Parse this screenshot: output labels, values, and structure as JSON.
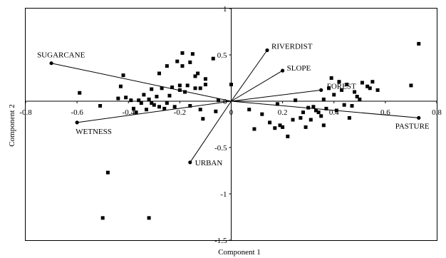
{
  "chart_data": {
    "type": "scatter",
    "title": "",
    "xlabel": "Component 1",
    "ylabel": "Component 2",
    "xlim": [
      -0.8,
      0.8
    ],
    "ylim": [
      -1.5,
      1
    ],
    "x_ticks": [
      -0.8,
      -0.6,
      -0.4,
      -0.2,
      0,
      0.2,
      0.4,
      0.6,
      0.8
    ],
    "x_tick_labels": [
      "-0.8",
      "-0.6",
      "-0.4",
      "-0.2",
      "0",
      "0.2",
      "0.4",
      "0.6",
      "0.8"
    ],
    "y_ticks": [
      1,
      0.5,
      0,
      -0.5,
      -1,
      -1.5
    ],
    "y_tick_labels": [
      "1",
      "0.5",
      "0",
      "-0.5",
      "-1",
      "-1.5"
    ],
    "grid": false,
    "loadings": [
      {
        "name": "SUGARCANE",
        "x": -0.7,
        "y": 0.41
      },
      {
        "name": "WETNESS",
        "x": -0.6,
        "y": -0.23
      },
      {
        "name": "URBAN",
        "x": -0.16,
        "y": -0.66
      },
      {
        "name": "RIVERDIST",
        "x": 0.14,
        "y": 0.55
      },
      {
        "name": "SLOPE",
        "x": 0.2,
        "y": 0.33
      },
      {
        "name": "FOREST",
        "x": 0.35,
        "y": 0.12
      },
      {
        "name": "PASTURE",
        "x": 0.73,
        "y": -0.18
      }
    ],
    "scores": [
      [
        -0.59,
        0.09
      ],
      [
        -0.51,
        -0.05
      ],
      [
        -0.44,
        0.03
      ],
      [
        -0.43,
        0.16
      ],
      [
        -0.42,
        0.28
      ],
      [
        -0.41,
        0.04
      ],
      [
        -0.39,
        0.01
      ],
      [
        -0.38,
        -0.08
      ],
      [
        -0.37,
        -0.12
      ],
      [
        -0.36,
        0.01
      ],
      [
        -0.35,
        -0.02
      ],
      [
        -0.34,
        0.07
      ],
      [
        -0.33,
        -0.09
      ],
      [
        -0.32,
        0.02
      ],
      [
        -0.31,
        -0.02
      ],
      [
        -0.31,
        0.13
      ],
      [
        -0.3,
        -0.04
      ],
      [
        -0.29,
        0.05
      ],
      [
        -0.28,
        0.3
      ],
      [
        -0.28,
        -0.06
      ],
      [
        -0.27,
        0.14
      ],
      [
        -0.26,
        -0.08
      ],
      [
        -0.25,
        0.38
      ],
      [
        -0.25,
        -0.02
      ],
      [
        -0.24,
        0.06
      ],
      [
        -0.23,
        0.15
      ],
      [
        -0.22,
        -0.06
      ],
      [
        -0.21,
        0.43
      ],
      [
        -0.2,
        0.12
      ],
      [
        -0.2,
        0.17
      ],
      [
        -0.19,
        0.52
      ],
      [
        -0.19,
        0.38
      ],
      [
        -0.18,
        0.1
      ],
      [
        -0.17,
        0.17
      ],
      [
        -0.16,
        -0.05
      ],
      [
        -0.16,
        0.42
      ],
      [
        -0.15,
        0.51
      ],
      [
        -0.14,
        0.14
      ],
      [
        -0.14,
        0.27
      ],
      [
        -0.13,
        0.3
      ],
      [
        -0.12,
        -0.09
      ],
      [
        -0.12,
        0.14
      ],
      [
        -0.11,
        -0.19
      ],
      [
        -0.1,
        0.18
      ],
      [
        -0.1,
        0.24
      ],
      [
        -0.07,
        0.46
      ],
      [
        -0.06,
        -0.11
      ],
      [
        -0.05,
        0.01
      ],
      [
        -0.48,
        -0.77
      ],
      [
        -0.5,
        -1.26
      ],
      [
        -0.32,
        -1.26
      ],
      [
        0.0,
        0.18
      ],
      [
        0.07,
        -0.09
      ],
      [
        0.09,
        -0.3
      ],
      [
        0.12,
        -0.14
      ],
      [
        0.15,
        -0.23
      ],
      [
        0.17,
        -0.29
      ],
      [
        0.18,
        -0.03
      ],
      [
        0.19,
        -0.26
      ],
      [
        0.2,
        -0.28
      ],
      [
        0.22,
        -0.38
      ],
      [
        0.24,
        -0.2
      ],
      [
        0.25,
        0.01
      ],
      [
        0.27,
        -0.18
      ],
      [
        0.28,
        -0.12
      ],
      [
        0.29,
        -0.28
      ],
      [
        0.3,
        -0.07
      ],
      [
        0.31,
        -0.2
      ],
      [
        0.32,
        -0.06
      ],
      [
        0.33,
        -0.1
      ],
      [
        0.34,
        -0.12
      ],
      [
        0.35,
        -0.16
      ],
      [
        0.36,
        0.02
      ],
      [
        0.36,
        -0.26
      ],
      [
        0.37,
        -0.08
      ],
      [
        0.38,
        0.14
      ],
      [
        0.39,
        0.25
      ],
      [
        0.4,
        0.07
      ],
      [
        0.41,
        -0.1
      ],
      [
        0.42,
        0.21
      ],
      [
        0.43,
        0.12
      ],
      [
        0.44,
        -0.04
      ],
      [
        0.45,
        0.18
      ],
      [
        0.46,
        -0.18
      ],
      [
        0.47,
        -0.05
      ],
      [
        0.48,
        0.1
      ],
      [
        0.49,
        0.05
      ],
      [
        0.5,
        0.02
      ],
      [
        0.51,
        0.2
      ],
      [
        0.53,
        0.16
      ],
      [
        0.54,
        0.14
      ],
      [
        0.55,
        0.21
      ],
      [
        0.57,
        0.12
      ],
      [
        0.7,
        0.17
      ],
      [
        0.73,
        0.62
      ]
    ]
  }
}
